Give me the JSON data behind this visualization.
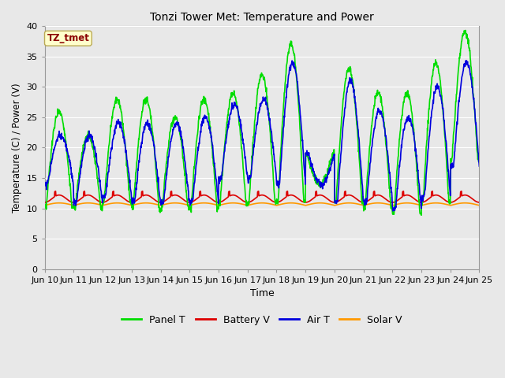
{
  "title": "Tonzi Tower Met: Temperature and Power",
  "xlabel": "Time",
  "ylabel": "Temperature (C) / Power (V)",
  "legend_label": "TZ_tmet",
  "ylim": [
    0,
    40
  ],
  "yticks": [
    0,
    5,
    10,
    15,
    20,
    25,
    30,
    35,
    40
  ],
  "x_tick_labels": [
    "Jun 10",
    "Jun 11",
    "Jun 12",
    "Jun 13",
    "Jun 14",
    "Jun 15",
    "Jun 16",
    "Jun 17",
    "Jun 18",
    "Jun 19",
    "Jun 20",
    "Jun 21",
    "Jun 22",
    "Jun 23",
    "Jun 24",
    "Jun 25"
  ],
  "colors": {
    "panel_t": "#00DD00",
    "battery_v": "#DD0000",
    "air_t": "#0000DD",
    "solar_v": "#FF9900",
    "fig_bg": "#E8E8E8",
    "plot_bg": "#E8E8E8",
    "legend_box_bg": "#FFFFCC",
    "grid_color": "#FFFFFF"
  },
  "line_width": 1.2,
  "n_days": 15,
  "pts_per_day": 96,
  "annotation_label": "TZ_tmet"
}
